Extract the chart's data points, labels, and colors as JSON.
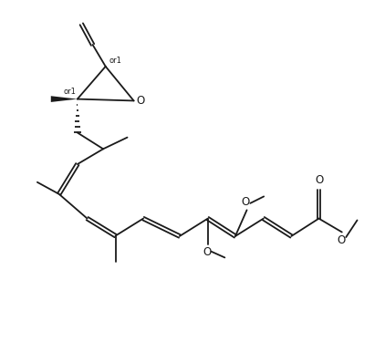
{
  "background_color": "#ffffff",
  "line_color": "#1a1a1a",
  "line_width": 1.3,
  "font_size": 7.5,
  "figsize": [
    4.22,
    3.75
  ],
  "dpi": 100,
  "xlim": [
    0,
    10
  ],
  "ylim": [
    0,
    10
  ]
}
